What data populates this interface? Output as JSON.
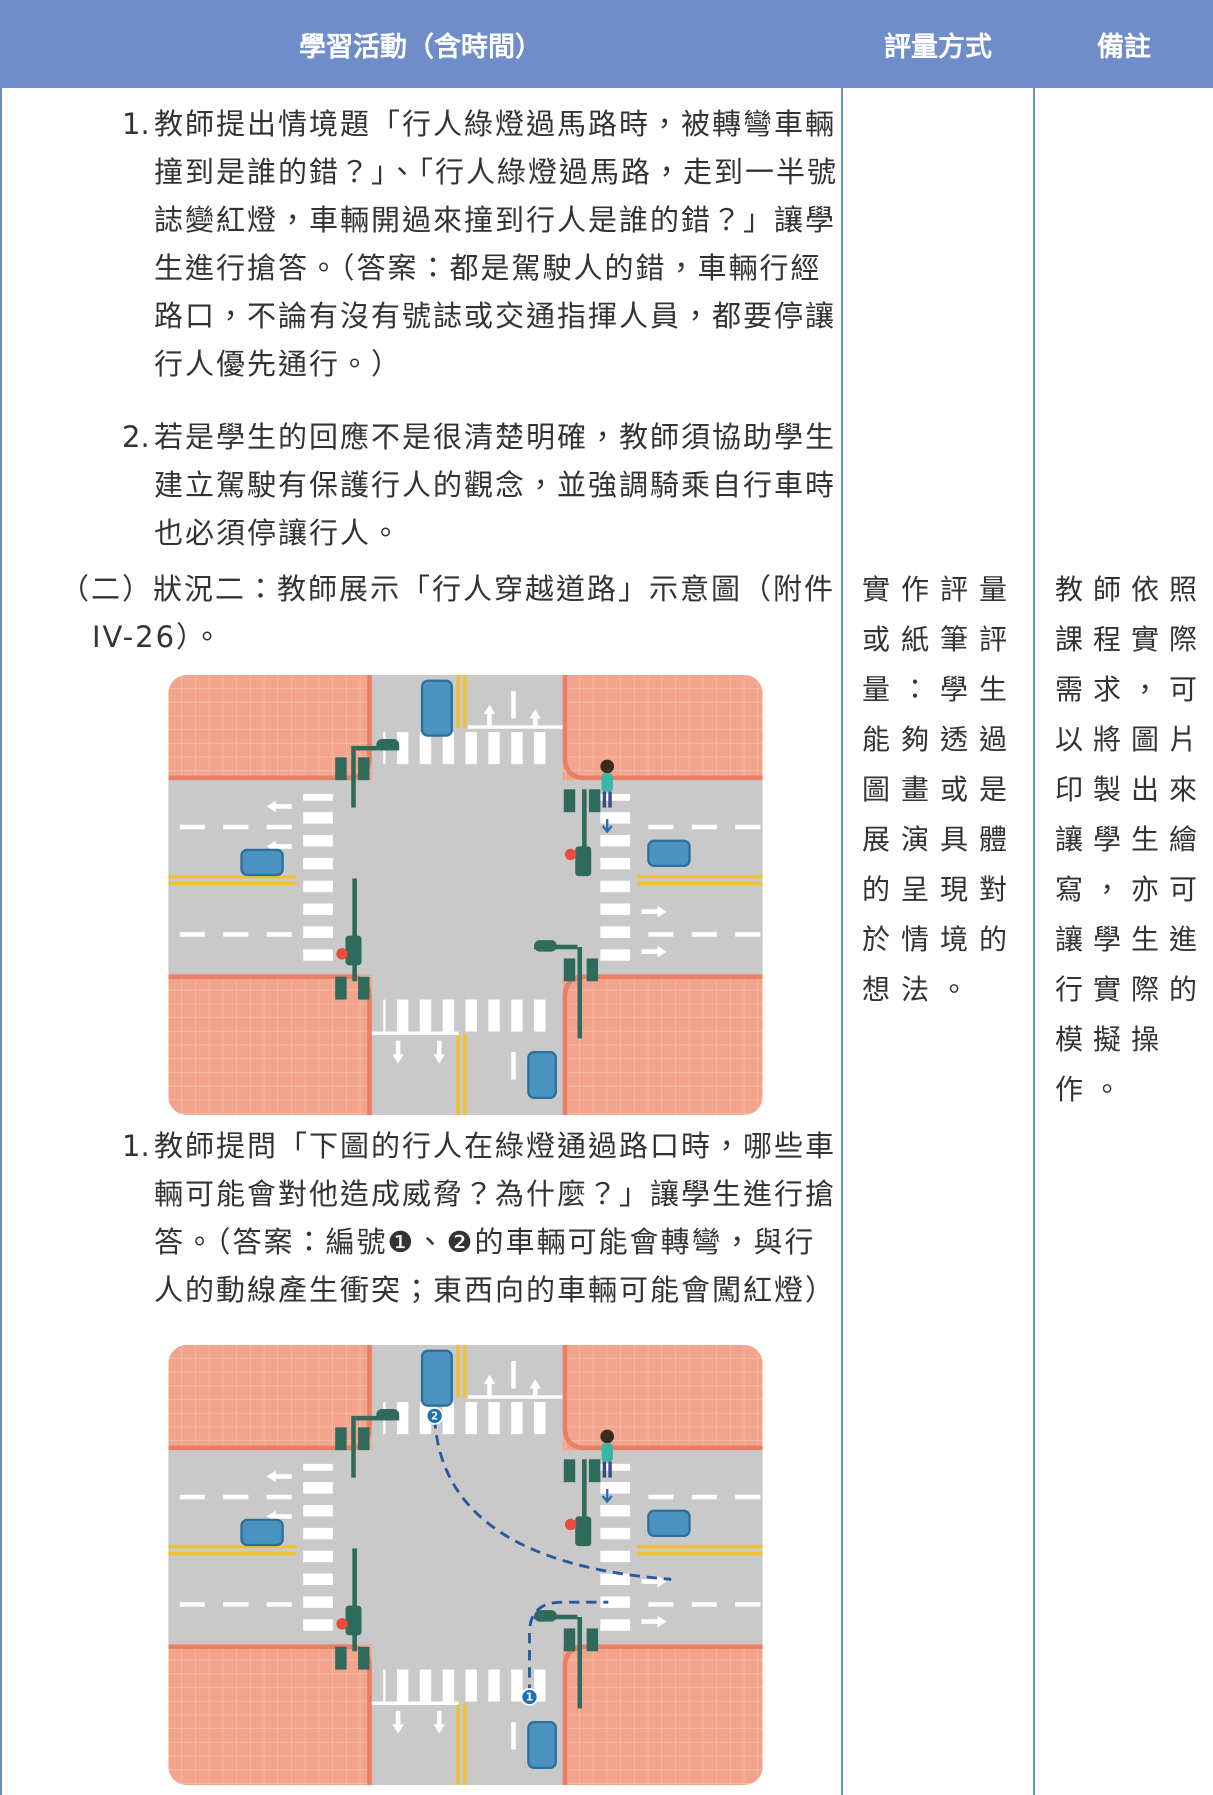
{
  "table": {
    "headers": [
      "學習活動（含時間）",
      "評量方式",
      "備註"
    ]
  },
  "activity": {
    "items1": [
      {
        "number": "1.",
        "text": "教師提出情境題「行人綠燈過馬路時，被轉彎車輛撞到是誰的錯？」、「行人綠燈過馬路，走到一半號誌變紅燈，車輛開過來撞到行人是誰的錯？」讓學生進行搶答。（答案：都是駕駛人的錯，車輛行經路口，不論有沒有號誌或交通指揮人員，都要停讓行人優先通行。）"
      },
      {
        "number": "2.",
        "text": "若是學生的回應不是很清楚明確，教師須協助學生建立駕駛有保護行人的觀念，並強調騎乘自行車時也必須停讓行人。"
      }
    ],
    "section": "（二）狀況二：教師展示「行人穿越道路」示意圖（附件IV-26）。",
    "items2": [
      {
        "number": "1.",
        "text": "教師提問「下圖的行人在綠燈通過路口時，哪些車輛可能會對他造成威脅？為什麼？」讓學生進行搶答。（答案：編號❶、❷的車輛可能會轉彎，與行人的動線產生衝突；東西向的車輛可能會闖紅燈）"
      }
    ]
  },
  "assessment": "實作評量或紙筆評量：學生能夠透過圖畫或是展演具體的呈現對於情境的想法。",
  "notes": "教師依照課程實際需求，可以將圖片印製出來讓學生繪寫，亦可讓學生進行實際的模擬操作。",
  "figure2": {
    "markers": [
      "2",
      "1"
    ]
  }
}
